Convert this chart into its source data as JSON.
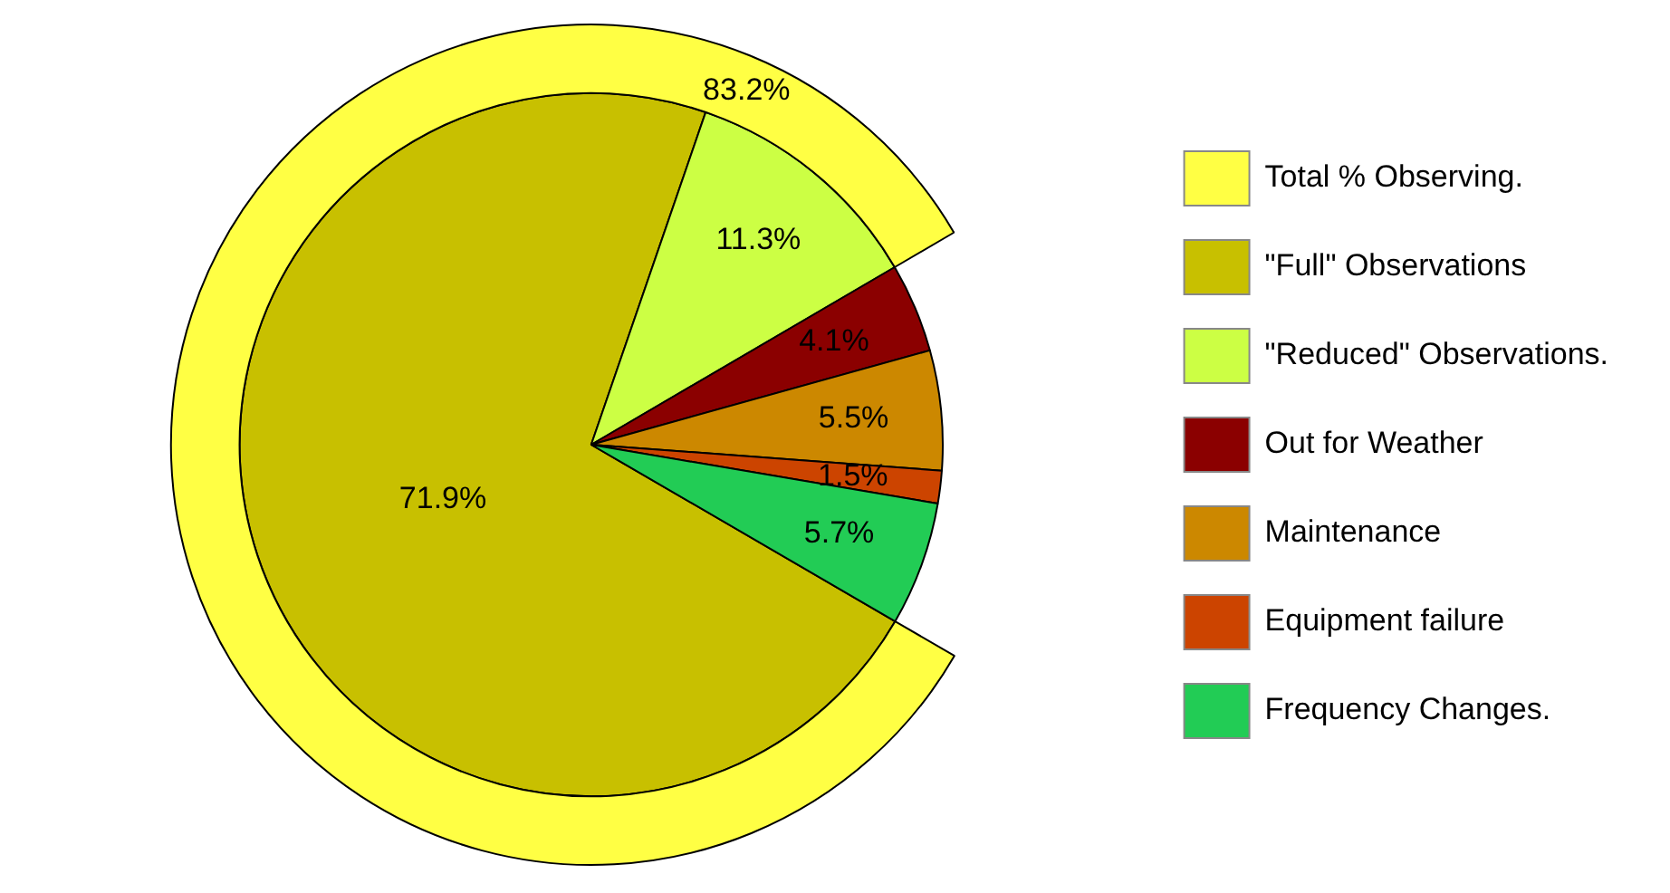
{
  "chart_data": {
    "type": "pie",
    "categories": [
      "Total % Observing.",
      "\"Full\" Observations",
      "\"Reduced\" Observations.",
      "Out for Weather",
      "Maintenance",
      "Equipment failure",
      "Frequency Changes."
    ],
    "colors": [
      "#ffff44",
      "#c8c000",
      "#ccff44",
      "#8b0000",
      "#cc8800",
      "#cc4400",
      "#22cc55"
    ],
    "series": [
      {
        "type": "donut",
        "values": [
          83.2,
          null,
          null,
          null,
          null,
          null,
          null
        ],
        "value_labels": [
          "83.2%",
          null,
          null,
          null,
          null,
          null,
          null
        ]
      },
      {
        "type": "pie",
        "values": [
          null,
          71.9,
          11.3,
          4.1,
          5.5,
          1.5,
          5.7
        ],
        "value_labels": [
          null,
          "71.9%",
          "11.3%",
          "4.1%",
          "5.5%",
          "1.5%",
          "5.7%"
        ]
      }
    ],
    "legend": "right"
  }
}
